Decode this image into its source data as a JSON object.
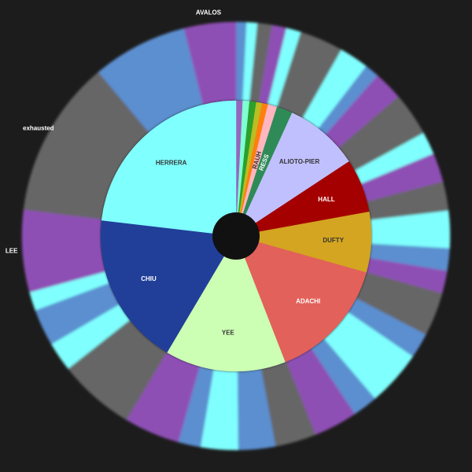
{
  "chart_data": {
    "type": "sunburst",
    "rings": [
      {
        "labels": [
          null,
          null,
          null,
          null,
          null,
          "RAUH",
          "RESS",
          "ALIOTO-PIER",
          "HALL",
          "DUFTY",
          "ADACHI",
          "YEE",
          "CHIU",
          "HERRERA"
        ],
        "colors": [
          "#9467bd",
          "#7fffd4",
          "#2ca02c",
          "#bcbd22",
          "#ff7f0e",
          "#ffb6c1",
          "#2e8b57",
          "#c0c0ff",
          "#a50000",
          "#d4a520",
          "#e2615a",
          "#ccffb3",
          "#213f99",
          "#80ffff"
        ],
        "values": [
          0.8,
          0.8,
          0.8,
          0.7,
          0.7,
          1.1,
          1.9,
          8.9,
          6.4,
          7.2,
          14.7,
          14.4,
          18.3,
          23.1
        ]
      },
      {
        "labels": [
          null,
          null,
          null,
          null,
          null,
          null,
          null,
          null,
          null,
          null,
          null,
          null,
          null,
          null,
          null,
          null,
          null,
          null,
          null,
          null,
          null,
          null,
          null,
          null,
          null,
          null,
          null,
          null,
          null,
          null,
          null,
          "LEE",
          "exhausted",
          null,
          "AVALOS"
        ],
        "colors": [
          "#5b8fd0",
          "#80ffff",
          "#666666",
          "#8e4fb5",
          "#80ffff",
          "#666666",
          "#80ffff",
          "#5b8fd0",
          "#8e4fb5",
          "#666666",
          "#80ffff",
          "#8e4fb5",
          "#666666",
          "#80ffff",
          "#5b8fd0",
          "#8e4fb5",
          "#666666",
          "#5b8fd0",
          "#80ffff",
          "#5b8fd0",
          "#8e4fb5",
          "#666666",
          "#5b8fd0",
          "#80ffff",
          "#5b8fd0",
          "#8e4fb5",
          "#666666",
          "#80ffff",
          "#5b8fd0",
          "#80ffff",
          "#8e4fb5",
          "#8e4fb5",
          "#666666",
          "#5b8fd0",
          "#8e4fb5"
        ],
        "values": [
          0.8,
          0.8,
          1.1,
          1.1,
          1.1,
          3.3,
          2.2,
          1.1,
          2.2,
          3.3,
          1.7,
          2.2,
          2.2,
          2.8,
          1.7,
          1.7,
          3.3,
          1.9,
          4.2,
          1.9,
          3.3,
          3.1,
          2.8,
          2.8,
          1.7,
          4.2,
          5.8,
          2.2,
          2.8,
          1.4,
          0.1,
          6.1,
          11.9,
          7.2,
          3.9
        ]
      }
    ]
  }
}
